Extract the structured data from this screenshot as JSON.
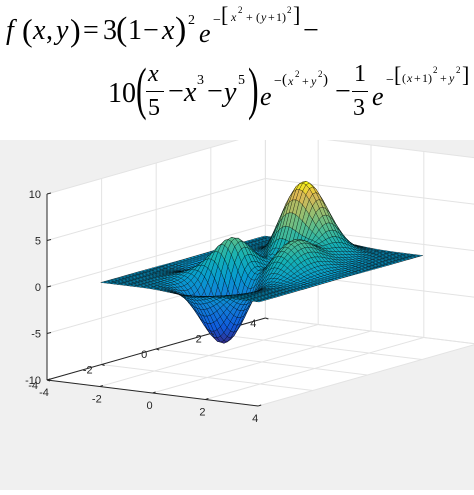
{
  "formula": {
    "lhs": "f(x, y) = 3(1 − x)² e^−[x² + (y+1)²] − 10(x/5 − x³ − y⁵) e^−(x² + y²) − 1/3 e^−[(x+1)² + y²]",
    "tokens": {
      "f": "f",
      "x": "x",
      "y": "y",
      "eq": "=",
      "three": "3",
      "one": "1",
      "minus": "−",
      "sq": "2",
      "e": "e",
      "ten": "10",
      "five": "5",
      "cube": "3",
      "pow5": "5",
      "plus": "+",
      "one3": "1",
      "den3": "3",
      "lparen": "(",
      "rparen": ")",
      "comma": ","
    }
  },
  "chart_data": {
    "type": "surface",
    "function": "peaks",
    "title": "",
    "xlabel": "",
    "ylabel": "",
    "zlabel": "",
    "xlim": [
      -4,
      4
    ],
    "ylim": [
      -4,
      4
    ],
    "zlim": [
      -10,
      10
    ],
    "x_ticks": [
      "-4",
      "-2",
      "0",
      "2",
      "4"
    ],
    "y_ticks": [
      "-4",
      "-2",
      "0",
      "2",
      "4"
    ],
    "z_ticks": [
      "-10",
      "-5",
      "0",
      "5",
      "10"
    ],
    "grid_resolution": 49,
    "surface_range": [
      -3,
      3
    ],
    "colormap": "parula",
    "grid": true,
    "colors": {
      "axes_bg": "#ffffff",
      "figure_bg": "#f0f0f0",
      "grid": "#e3e3e3",
      "axis_line": "#262626",
      "edge": "#000000"
    }
  }
}
